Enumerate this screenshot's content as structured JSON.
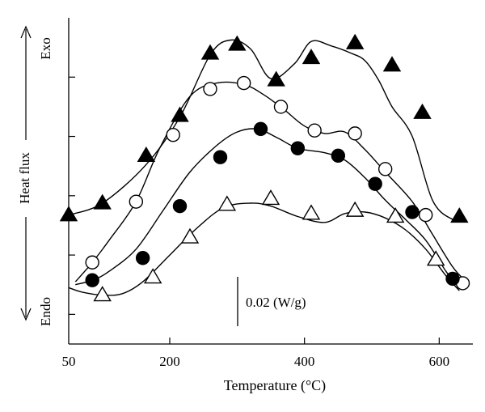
{
  "chart_data": {
    "type": "line",
    "title": "",
    "xlabel": "Temperature (°C)",
    "ylabel": "Heat flux",
    "ylabel_top": "Exo",
    "ylabel_bottom": "Endo",
    "xlim": [
      50,
      650
    ],
    "xticks": [
      50,
      200,
      400,
      600
    ],
    "ylim": [
      -0.01,
      0.1
    ],
    "y_tick_labels_shown": false,
    "scale_bar": {
      "label": "0.02 (W/g)",
      "value": 0.02
    },
    "grid": false,
    "legend": "none",
    "series": [
      {
        "marker": "filled-triangle",
        "x": [
          50,
          100,
          165,
          215,
          260,
          290,
          320,
          350,
          385,
          410,
          440,
          470,
          490,
          510,
          530,
          560,
          590,
          620,
          640
        ],
        "y": [
          0.0335,
          0.0375,
          0.0505,
          0.0665,
          0.0875,
          0.0925,
          0.0895,
          0.0795,
          0.0845,
          0.092,
          0.0905,
          0.088,
          0.0855,
          0.079,
          0.07,
          0.06,
          0.0385,
          0.032,
          0.032
        ],
        "markers_x": [
          50,
          100,
          165,
          215,
          260,
          300,
          358,
          410,
          475,
          530,
          575,
          630
        ],
        "markers_y": [
          0.0335,
          0.0375,
          0.0535,
          0.067,
          0.088,
          0.091,
          0.079,
          0.0865,
          0.0915,
          0.084,
          0.068,
          0.033
        ]
      },
      {
        "marker": "open-circle",
        "x": [
          60,
          85,
          110,
          150,
          185,
          230,
          270,
          310,
          340,
          370,
          400,
          430,
          460,
          490,
          520,
          560,
          590,
          620,
          640
        ],
        "y": [
          0.011,
          0.0175,
          0.025,
          0.038,
          0.056,
          0.0735,
          0.078,
          0.0775,
          0.074,
          0.069,
          0.0635,
          0.061,
          0.0615,
          0.0555,
          0.048,
          0.038,
          0.027,
          0.016,
          0.011
        ],
        "markers_x": [
          85,
          150,
          205,
          260,
          310,
          365,
          415,
          475,
          520,
          580,
          635
        ],
        "markers_y": [
          0.0175,
          0.038,
          0.0605,
          0.076,
          0.078,
          0.07,
          0.062,
          0.061,
          0.049,
          0.0335,
          0.0105
        ]
      },
      {
        "marker": "filled-circle",
        "x": [
          60,
          85,
          110,
          150,
          190,
          230,
          270,
          300,
          330,
          360,
          390,
          430,
          460,
          490,
          520,
          550,
          580,
          610,
          625
        ],
        "y": [
          0.01,
          0.0115,
          0.0145,
          0.022,
          0.035,
          0.048,
          0.057,
          0.0615,
          0.0625,
          0.0595,
          0.056,
          0.0545,
          0.052,
          0.046,
          0.0385,
          0.032,
          0.025,
          0.0145,
          0.01
        ],
        "markers_x": [
          85,
          160,
          215,
          275,
          335,
          390,
          450,
          505,
          560,
          620
        ],
        "markers_y": [
          0.0115,
          0.019,
          0.0365,
          0.053,
          0.0625,
          0.056,
          0.0535,
          0.044,
          0.0345,
          0.012
        ]
      },
      {
        "marker": "open-triangle",
        "x": [
          50,
          70,
          100,
          130,
          160,
          200,
          240,
          280,
          320,
          350,
          390,
          430,
          460,
          490,
          520,
          550,
          580,
          610,
          630
        ],
        "y": [
          0.009,
          0.0075,
          0.0065,
          0.007,
          0.011,
          0.02,
          0.029,
          0.036,
          0.0375,
          0.0365,
          0.033,
          0.031,
          0.034,
          0.0345,
          0.0325,
          0.0285,
          0.022,
          0.013,
          0.008
        ],
        "markers_x": [
          100,
          175,
          230,
          285,
          350,
          410,
          475,
          535,
          595
        ],
        "markers_y": [
          0.0065,
          0.0125,
          0.026,
          0.037,
          0.039,
          0.034,
          0.035,
          0.033,
          0.0185
        ]
      }
    ]
  }
}
